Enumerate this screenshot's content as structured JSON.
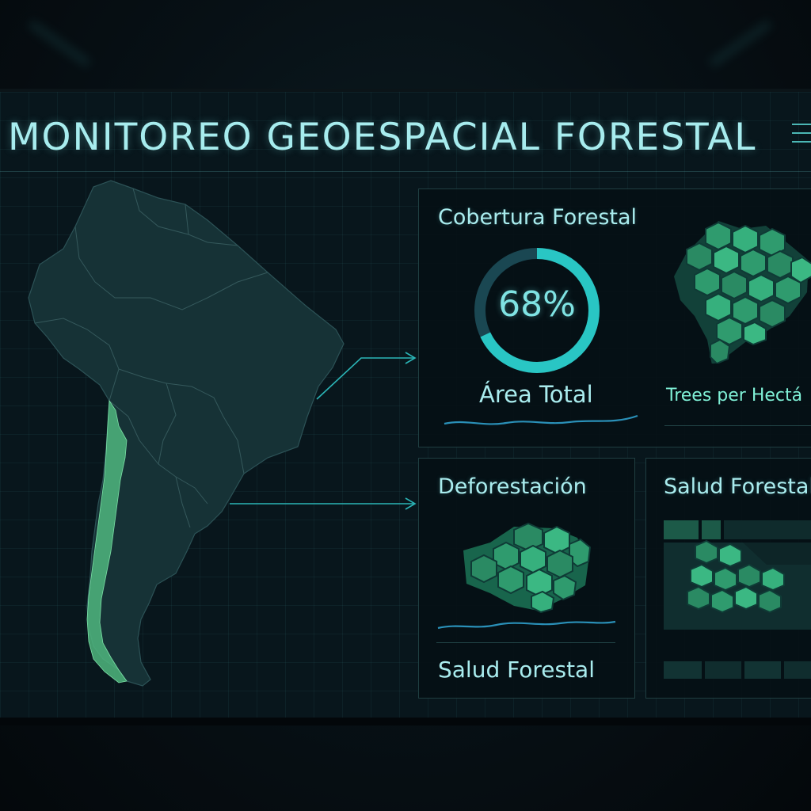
{
  "header": {
    "title": "MONITOREO GEOESPACIAL FORESTAL",
    "menu_icon": "hamburger-menu-icon"
  },
  "map": {
    "region": "South America",
    "highlight_color": "#4fb67e"
  },
  "panels": {
    "cobertura": {
      "title": "Cobertura Forestal",
      "gauge_value": "68%",
      "gauge_fraction": 0.68,
      "area_label": "Área Total",
      "trees_label": "Trees per Hectá"
    },
    "deforestacion": {
      "title": "Deforestación",
      "sub_label": "Salud Forestal"
    },
    "salud": {
      "title": "Salud Forestal"
    }
  },
  "colors": {
    "accent": "#29c6c4",
    "text": "#a9ecee",
    "forest_green": "#2f9b6e",
    "background": "#08161c"
  }
}
